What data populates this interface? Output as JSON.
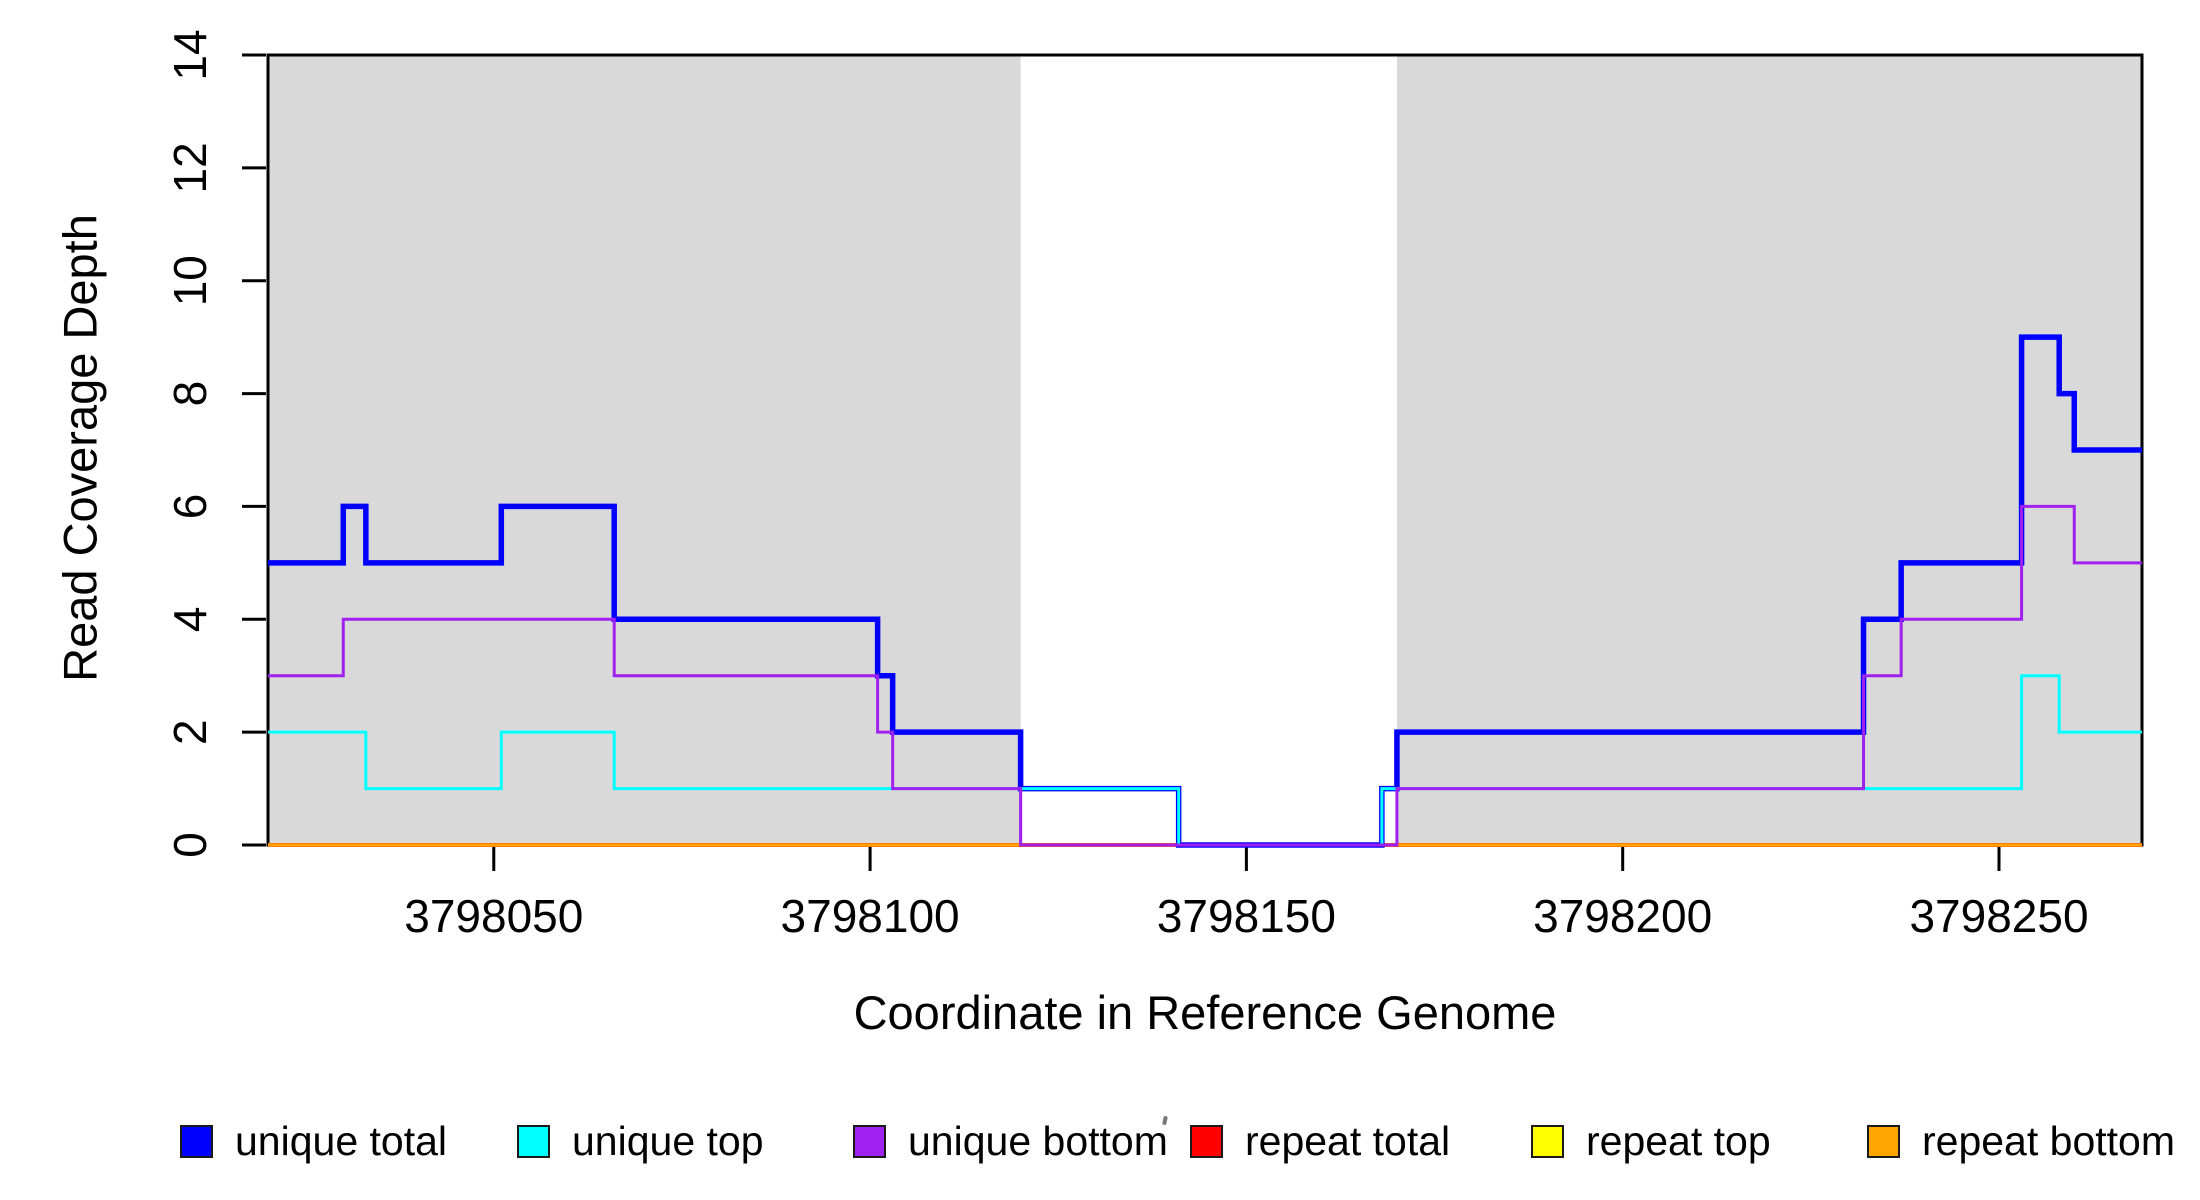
{
  "axes": {
    "x_title": "Coordinate in Reference Genome",
    "y_title": "Read Coverage Depth"
  },
  "chart_data": {
    "type": "line",
    "line_style": "step-after",
    "title": "",
    "xlabel": "Coordinate in Reference Genome",
    "ylabel": "Read Coverage Depth",
    "xlim": [
      3798020,
      3798269
    ],
    "ylim": [
      0,
      14
    ],
    "x_ticks": [
      3798050,
      3798100,
      3798150,
      3798200,
      3798250
    ],
    "y_ticks": [
      0,
      2,
      4,
      6,
      8,
      10,
      12,
      14
    ],
    "grid": false,
    "frame_color": "#000000",
    "shading_color": "#d9d9d9",
    "shaded_regions": [
      [
        3798020,
        3798120
      ],
      [
        3798170,
        3798269
      ]
    ],
    "series": [
      {
        "id": "repeat-total",
        "name": "repeat total",
        "color": "#ff0000",
        "width": 4,
        "steps": [
          [
            3798020,
            0
          ],
          [
            3798269,
            0
          ]
        ]
      },
      {
        "id": "repeat-top",
        "name": "repeat top",
        "color": "#ffff00",
        "width": 3,
        "steps": [
          [
            3798020,
            0
          ],
          [
            3798269,
            0
          ]
        ]
      },
      {
        "id": "repeat-bottom",
        "name": "repeat bottom",
        "color": "#ffa500",
        "width": 3.5,
        "steps": [
          [
            3798020,
            0
          ],
          [
            3798269,
            0
          ]
        ]
      },
      {
        "id": "unique-total",
        "name": "unique total",
        "color": "#0000ff",
        "width": 5.5,
        "steps": [
          [
            3798020,
            5
          ],
          [
            3798030,
            6
          ],
          [
            3798033,
            5
          ],
          [
            3798051,
            6
          ],
          [
            3798066,
            4
          ],
          [
            3798101,
            3
          ],
          [
            3798103,
            2
          ],
          [
            3798120,
            1
          ],
          [
            3798141,
            0
          ],
          [
            3798168,
            1
          ],
          [
            3798170,
            2
          ],
          [
            3798232,
            4
          ],
          [
            3798237,
            5
          ],
          [
            3798253,
            9
          ],
          [
            3798258,
            8
          ],
          [
            3798260,
            7
          ],
          [
            3798269,
            7
          ]
        ]
      },
      {
        "id": "unique-top",
        "name": "unique top",
        "color": "#00ffff",
        "width": 3,
        "steps": [
          [
            3798020,
            2
          ],
          [
            3798033,
            1
          ],
          [
            3798051,
            2
          ],
          [
            3798066,
            1
          ],
          [
            3798141,
            0
          ],
          [
            3798168,
            1
          ],
          [
            3798253,
            3
          ],
          [
            3798258,
            2
          ],
          [
            3798269,
            2
          ]
        ]
      },
      {
        "id": "unique-bottom",
        "name": "unique bottom",
        "color": "#a020f0",
        "width": 3,
        "steps": [
          [
            3798020,
            3
          ],
          [
            3798030,
            4
          ],
          [
            3798066,
            3
          ],
          [
            3798101,
            2
          ],
          [
            3798103,
            1
          ],
          [
            3798120,
            0
          ],
          [
            3798170,
            1
          ],
          [
            3798232,
            3
          ],
          [
            3798237,
            4
          ],
          [
            3798253,
            6
          ],
          [
            3798260,
            5
          ],
          [
            3798269,
            5
          ]
        ]
      }
    ],
    "legend": {
      "position": "bottom",
      "items": [
        {
          "label": "unique total",
          "color": "#0000ff"
        },
        {
          "label": "unique top",
          "color": "#00ffff"
        },
        {
          "label": "unique bottom",
          "color": "#a020f0"
        },
        {
          "label": "repeat total",
          "color": "#ff0000"
        },
        {
          "label": "repeat top",
          "color": "#ffff00"
        },
        {
          "label": "repeat bottom",
          "color": "#ffa500"
        }
      ]
    }
  }
}
